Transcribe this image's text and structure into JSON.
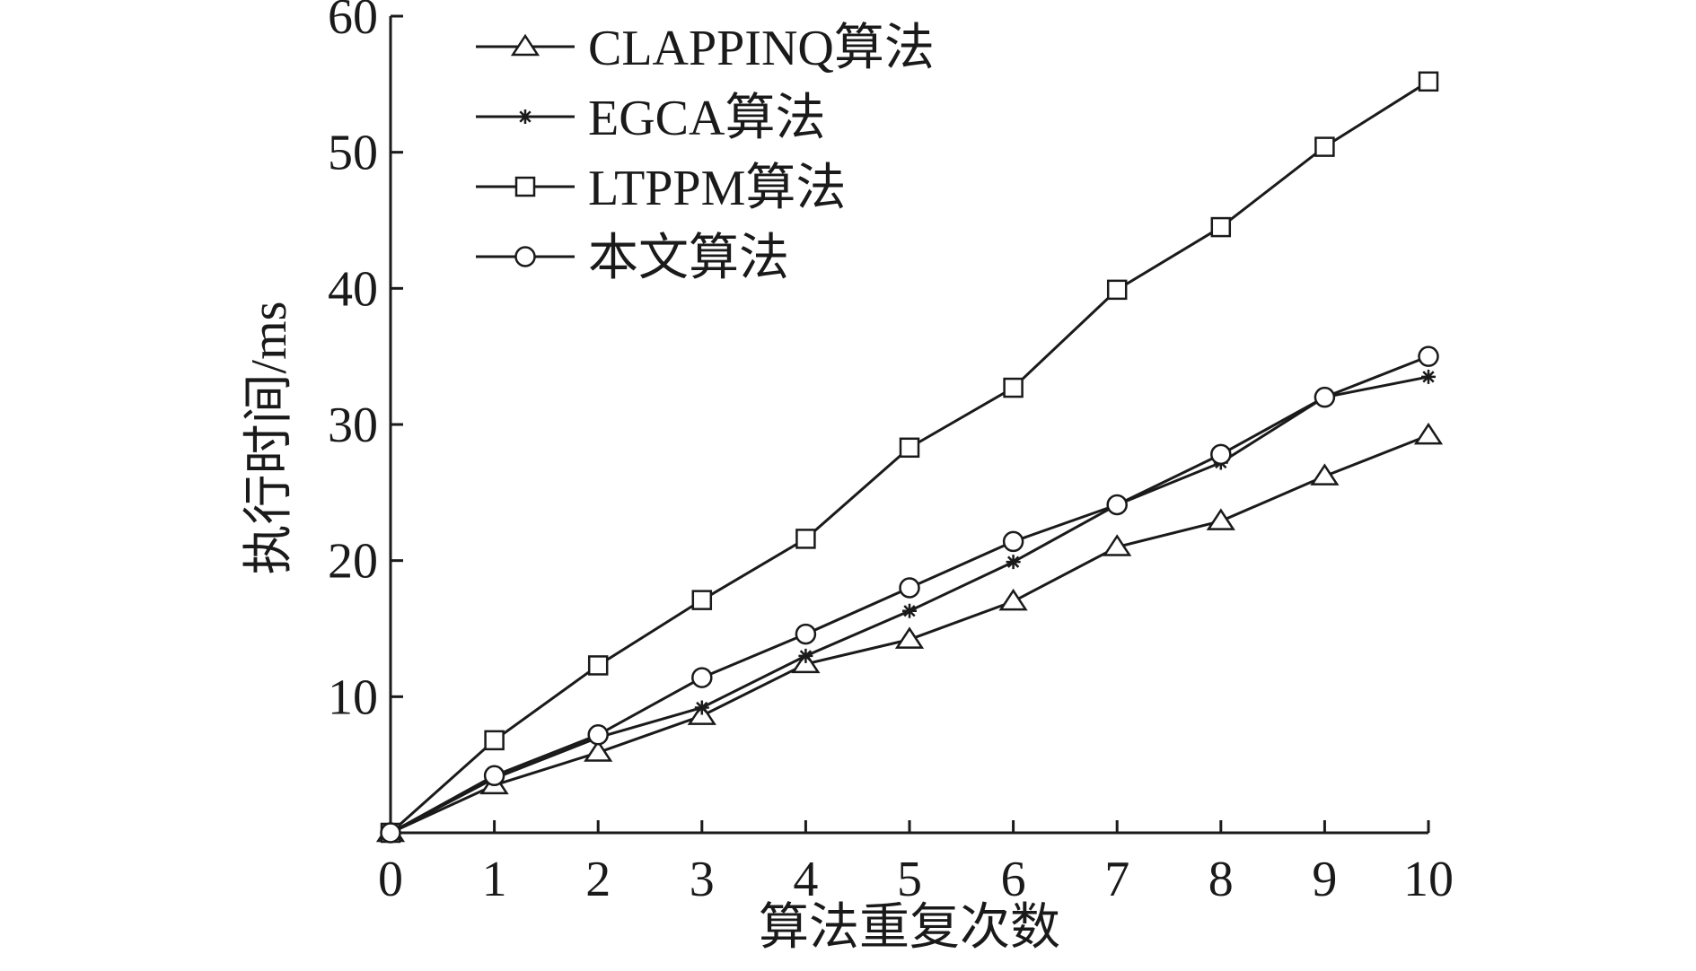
{
  "chart_data": {
    "type": "line",
    "title": "",
    "xlabel": "算法重复次数",
    "ylabel": "执行时间/ms",
    "x": [
      0,
      1,
      2,
      3,
      4,
      5,
      6,
      7,
      8,
      9,
      10
    ],
    "xlim": [
      0,
      10
    ],
    "ylim": [
      0,
      60
    ],
    "xticks": [
      "0",
      "1",
      "2",
      "3",
      "4",
      "5",
      "6",
      "7",
      "8",
      "9",
      "10"
    ],
    "yticks": [
      "10",
      "20",
      "30",
      "40",
      "50",
      "60"
    ],
    "grid": false,
    "legend_position": "top-left",
    "series": [
      {
        "name": "CLAPPINQ算法",
        "marker": "triangle",
        "color": "#1a1a1a",
        "values": [
          0,
          3.5,
          5.9,
          8.6,
          12.4,
          14.2,
          17.0,
          21.0,
          22.9,
          26.2,
          29.2
        ]
      },
      {
        "name": "EGCA算法",
        "marker": "star",
        "color": "#1a1a1a",
        "values": [
          0,
          4.0,
          7.0,
          9.2,
          13.0,
          16.3,
          19.9,
          24.1,
          27.2,
          32.0,
          33.5
        ]
      },
      {
        "name": "LTPPM算法",
        "marker": "square",
        "color": "#1a1a1a",
        "values": [
          0,
          6.8,
          12.3,
          17.1,
          21.6,
          28.3,
          32.7,
          39.9,
          44.5,
          50.4,
          55.2
        ]
      },
      {
        "name": "本文算法",
        "marker": "circle",
        "color": "#1a1a1a",
        "values": [
          0,
          4.2,
          7.2,
          11.4,
          14.6,
          18.0,
          21.4,
          24.1,
          27.8,
          32.0,
          35.0
        ]
      }
    ]
  }
}
